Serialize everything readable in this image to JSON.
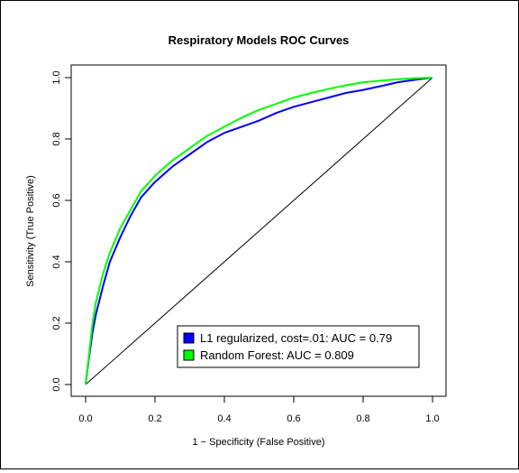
{
  "chart_data": {
    "type": "line",
    "title": "Respiratory Models ROC Curves",
    "xlabel": "1 − Specificity (False Positive)",
    "ylabel": "Sensitivity (True Positive)",
    "xlim": [
      0,
      1
    ],
    "ylim": [
      0,
      1
    ],
    "xticks": [
      "0.0",
      "0.2",
      "0.4",
      "0.6",
      "0.8",
      "1.0"
    ],
    "yticks": [
      "0.0",
      "0.2",
      "0.4",
      "0.6",
      "0.8",
      "1.0"
    ],
    "grid": false,
    "legend_position": "bottom-right",
    "series": [
      {
        "name": "L1 regularized, cost=.01: AUC = 0.79",
        "color": "#0000ff",
        "x": [
          0.0,
          0.01,
          0.02,
          0.03,
          0.05,
          0.07,
          0.1,
          0.13,
          0.16,
          0.2,
          0.25,
          0.3,
          0.35,
          0.4,
          0.45,
          0.5,
          0.55,
          0.6,
          0.65,
          0.7,
          0.75,
          0.8,
          0.85,
          0.9,
          0.95,
          1.0
        ],
        "y": [
          0.0,
          0.09,
          0.17,
          0.23,
          0.32,
          0.4,
          0.48,
          0.55,
          0.61,
          0.66,
          0.71,
          0.75,
          0.79,
          0.82,
          0.84,
          0.86,
          0.885,
          0.905,
          0.92,
          0.935,
          0.95,
          0.96,
          0.972,
          0.985,
          0.993,
          1.0
        ]
      },
      {
        "name": "Random Forest: AUC = 0.809",
        "color": "#00ff00",
        "x": [
          0.0,
          0.01,
          0.02,
          0.03,
          0.05,
          0.07,
          0.1,
          0.13,
          0.16,
          0.2,
          0.25,
          0.3,
          0.35,
          0.4,
          0.45,
          0.5,
          0.55,
          0.6,
          0.65,
          0.7,
          0.75,
          0.8,
          0.85,
          0.9,
          0.95,
          1.0
        ],
        "y": [
          0.0,
          0.1,
          0.2,
          0.27,
          0.36,
          0.43,
          0.51,
          0.57,
          0.63,
          0.68,
          0.73,
          0.77,
          0.81,
          0.84,
          0.87,
          0.895,
          0.915,
          0.935,
          0.95,
          0.963,
          0.975,
          0.985,
          0.99,
          0.995,
          0.998,
          1.0
        ]
      }
    ],
    "reference_line": {
      "x": [
        0,
        1
      ],
      "y": [
        0,
        1
      ]
    }
  }
}
